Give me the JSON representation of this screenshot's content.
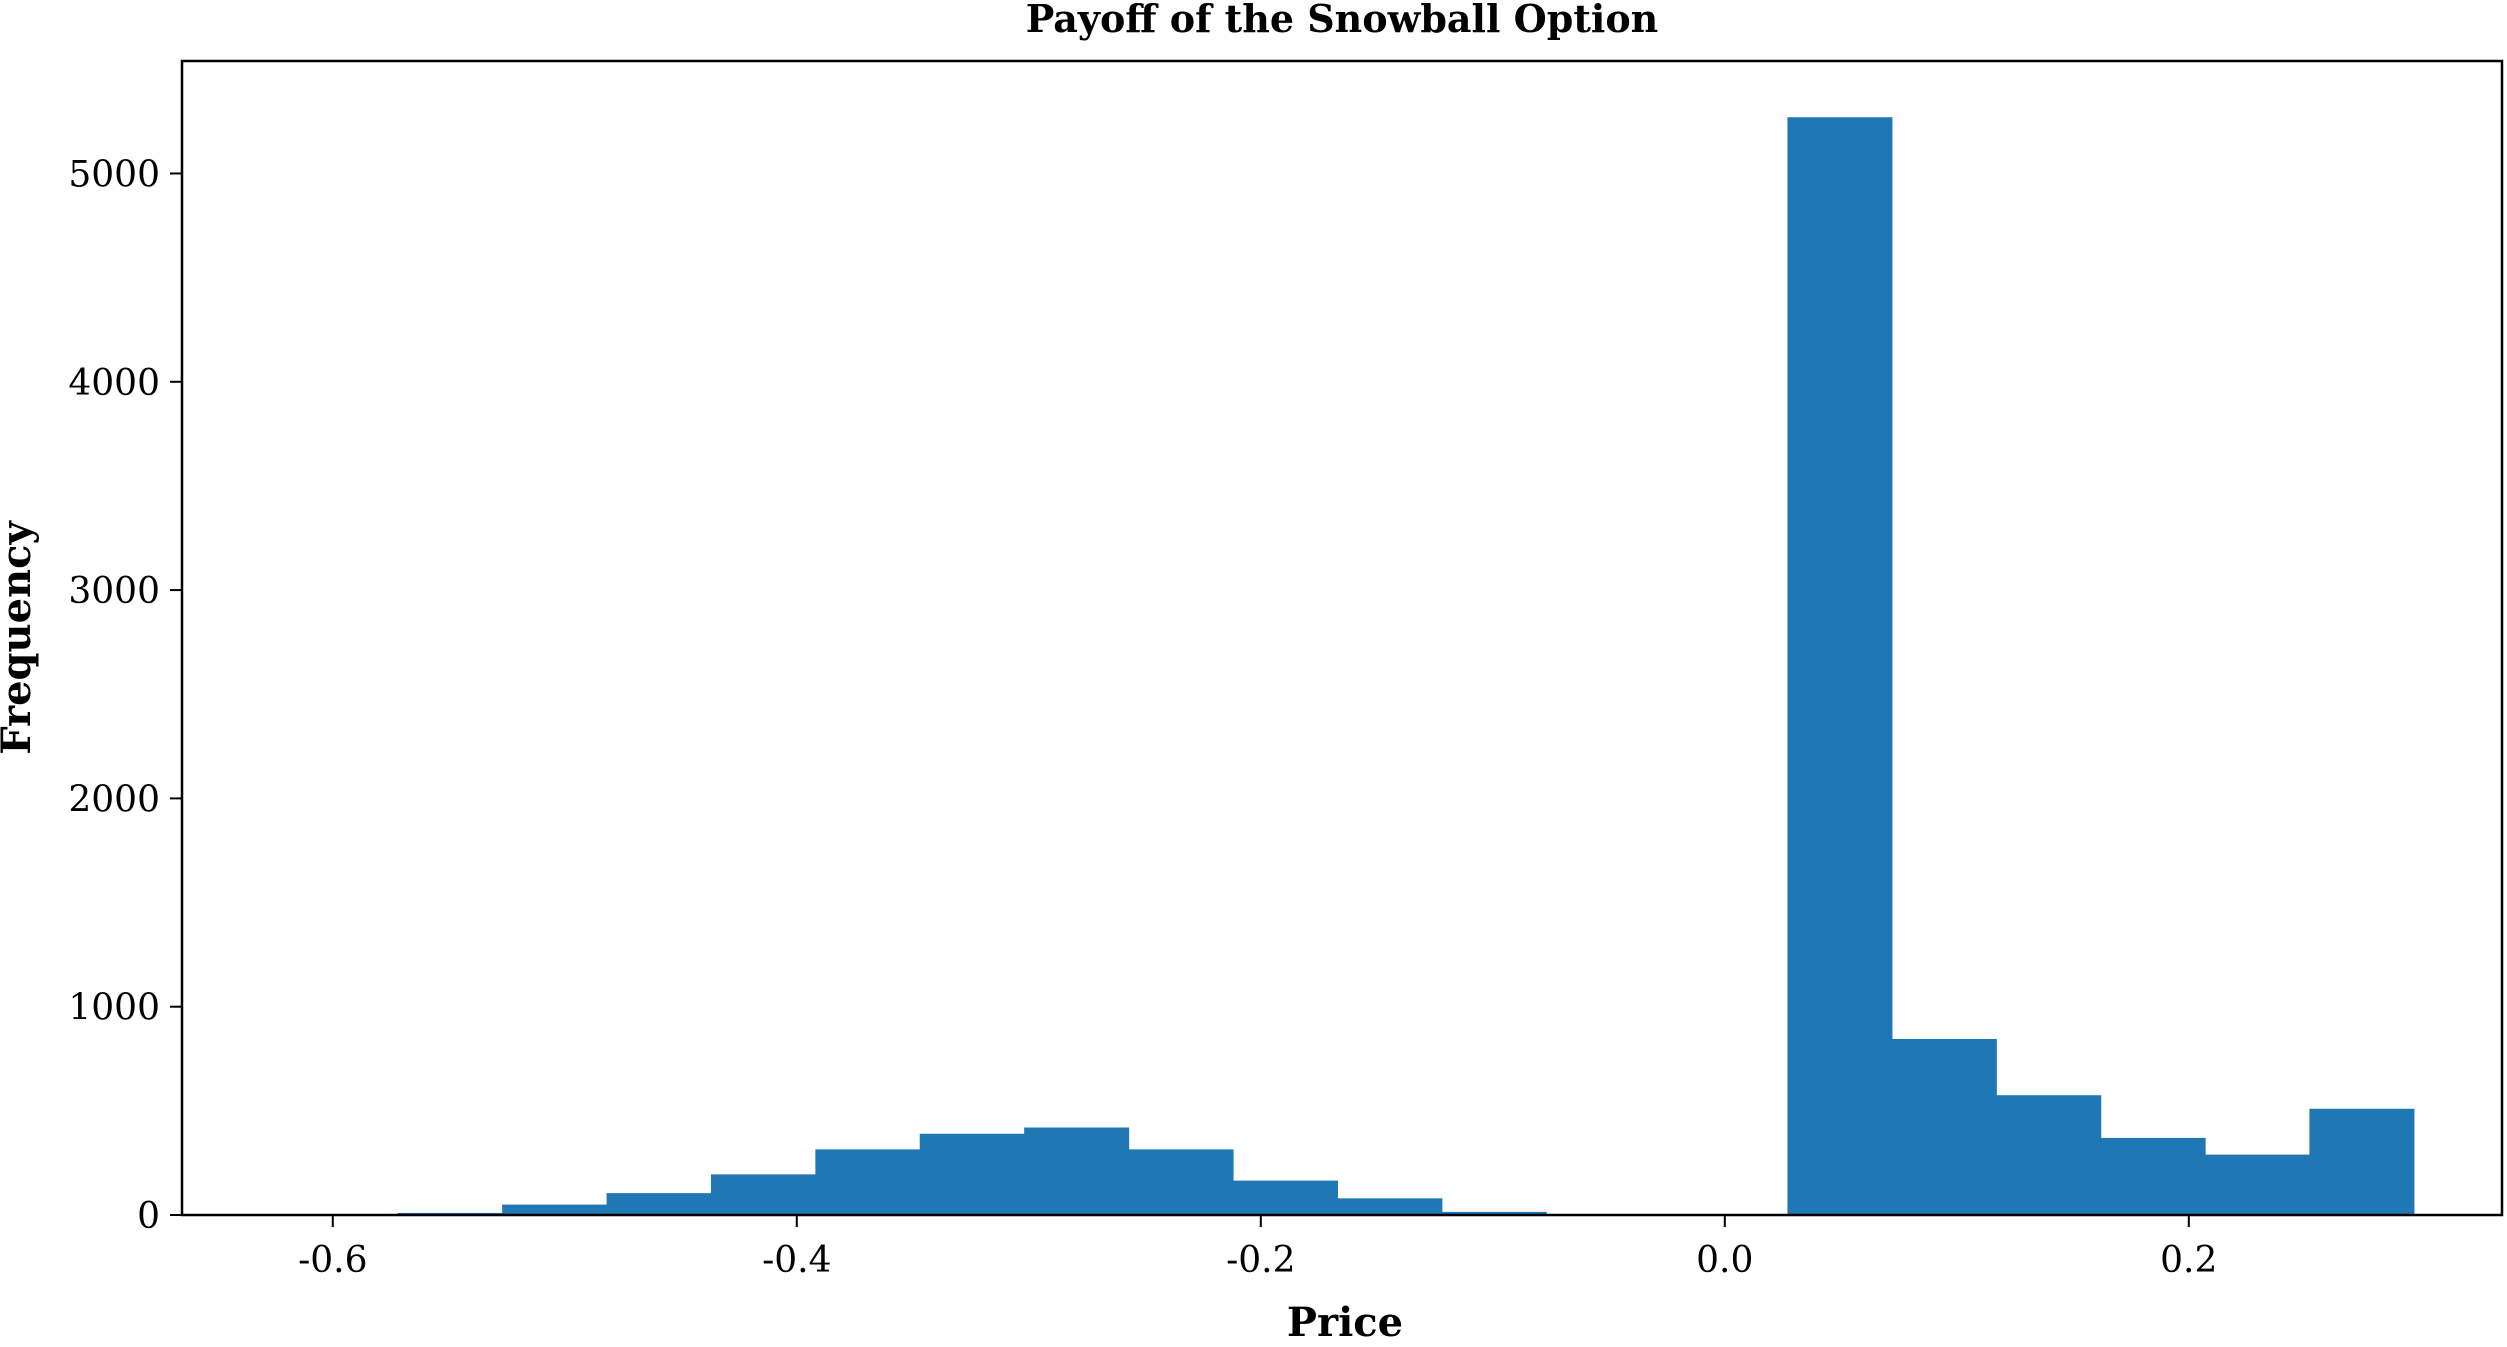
{
  "chart_data": {
    "type": "bar",
    "title": "Payoff of the Snowball Option",
    "xlabel": "Price",
    "ylabel": "Frequency",
    "xlim": [
      -0.665,
      0.335
    ],
    "ylim": [
      0,
      5540
    ],
    "xticks": [
      -0.6,
      -0.4,
      -0.2,
      0.0,
      0.2
    ],
    "xtick_labels": [
      "-0.6",
      "-0.4",
      "-0.2",
      "0.0",
      "0.2"
    ],
    "yticks": [
      0,
      1000,
      2000,
      3000,
      4000,
      5000
    ],
    "ytick_labels": [
      "0",
      "1000",
      "2000",
      "3000",
      "4000",
      "5000"
    ],
    "bar_color": "#1f77b4",
    "grid": false,
    "bins": [
      {
        "x0": -0.572,
        "x1": -0.527,
        "value": 10
      },
      {
        "x0": -0.527,
        "x1": -0.482,
        "value": 50
      },
      {
        "x0": -0.482,
        "x1": -0.437,
        "value": 105
      },
      {
        "x0": -0.437,
        "x1": -0.392,
        "value": 195
      },
      {
        "x0": -0.392,
        "x1": -0.347,
        "value": 315
      },
      {
        "x0": -0.347,
        "x1": -0.302,
        "value": 390
      },
      {
        "x0": -0.302,
        "x1": -0.257,
        "value": 420
      },
      {
        "x0": -0.257,
        "x1": -0.212,
        "value": 315
      },
      {
        "x0": -0.212,
        "x1": -0.167,
        "value": 165
      },
      {
        "x0": -0.167,
        "x1": -0.122,
        "value": 80
      },
      {
        "x0": -0.122,
        "x1": -0.077,
        "value": 15
      },
      {
        "x0": -0.077,
        "x1": -0.032,
        "value": 0
      },
      {
        "x0": -0.032,
        "x1": 0.013,
        "value": 0
      },
      {
        "x0": 0.027,
        "x1": 0.072,
        "value": 5270
      },
      {
        "x0": 0.072,
        "x1": 0.117,
        "value": 845
      },
      {
        "x0": 0.117,
        "x1": 0.162,
        "value": 575
      },
      {
        "x0": 0.162,
        "x1": 0.207,
        "value": 370
      },
      {
        "x0": 0.207,
        "x1": 0.252,
        "value": 290
      },
      {
        "x0": 0.252,
        "x1": 0.297,
        "value": 510
      }
    ]
  }
}
